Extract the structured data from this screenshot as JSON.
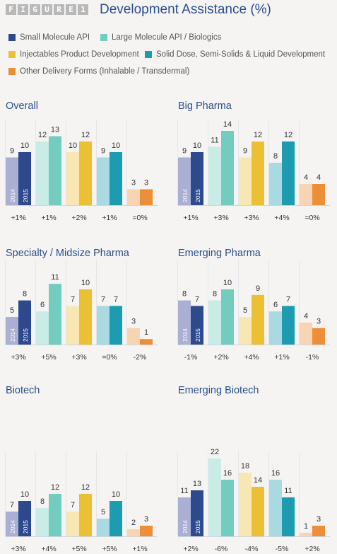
{
  "figure_label": [
    "F",
    "I",
    "G",
    "U",
    "R",
    "E",
    "1"
  ],
  "title": "Development Assistance (%)",
  "colors": {
    "title": "#2a4f8e",
    "grid": "#cfd6dd",
    "text": "#333333"
  },
  "legend": [
    {
      "label": "Small Molecule API",
      "color": "#2d4a8f"
    },
    {
      "label": "Large Molecule API / Biologics",
      "color": "#72cdbe"
    },
    {
      "label": "Injectables Product Development",
      "color": "#ecc035"
    },
    {
      "label": "Solid Dose, Semi-Solids & Liquid Development",
      "color": "#1d9cb1"
    },
    {
      "label": "Other Delivery Forms (Inhalable / Transdermal)",
      "color": "#ec8f38"
    }
  ],
  "year_labels": [
    "2014",
    "2015"
  ],
  "chart_data": [
    {
      "type": "bar",
      "title": "Overall",
      "values_2014": [
        9,
        12,
        10,
        9,
        3
      ],
      "values_2015": [
        10,
        13,
        12,
        10,
        3
      ],
      "changes": [
        "+1%",
        "+1%",
        "+2%",
        "+1%",
        "=0%"
      ],
      "ylim": [
        0,
        13
      ]
    },
    {
      "type": "bar",
      "title": "Big Pharma",
      "values_2014": [
        9,
        11,
        9,
        8,
        4
      ],
      "values_2015": [
        10,
        14,
        12,
        12,
        4
      ],
      "changes": [
        "+1%",
        "+3%",
        "+3%",
        "+4%",
        "=0%"
      ],
      "ylim": [
        0,
        14
      ]
    },
    {
      "type": "bar",
      "title": "Specialty / Midsize Pharma",
      "values_2014": [
        5,
        6,
        7,
        7,
        3
      ],
      "values_2015": [
        8,
        11,
        10,
        7,
        1
      ],
      "changes": [
        "+3%",
        "+5%",
        "+3%",
        "=0%",
        "-2%"
      ],
      "ylim": [
        0,
        11
      ]
    },
    {
      "type": "bar",
      "title": "Emerging Pharma",
      "values_2014": [
        8,
        8,
        5,
        6,
        4
      ],
      "values_2015": [
        7,
        10,
        9,
        7,
        3
      ],
      "changes": [
        "-1%",
        "+2%",
        "+4%",
        "+1%",
        "-1%"
      ],
      "ylim": [
        0,
        10
      ]
    },
    {
      "type": "bar",
      "title": "Biotech",
      "values_2014": [
        7,
        8,
        7,
        5,
        2
      ],
      "values_2015": [
        10,
        12,
        12,
        10,
        3
      ],
      "changes": [
        "+3%",
        "+4%",
        "+5%",
        "+5%",
        "+1%"
      ],
      "ylim": [
        0,
        12
      ]
    },
    {
      "type": "bar",
      "title": "Emerging Biotech",
      "values_2014": [
        11,
        22,
        18,
        16,
        1
      ],
      "values_2015": [
        13,
        16,
        14,
        11,
        3
      ],
      "changes": [
        "+2%",
        "-6%",
        "-4%",
        "-5%",
        "+2%"
      ],
      "ylim": [
        0,
        22
      ]
    }
  ]
}
